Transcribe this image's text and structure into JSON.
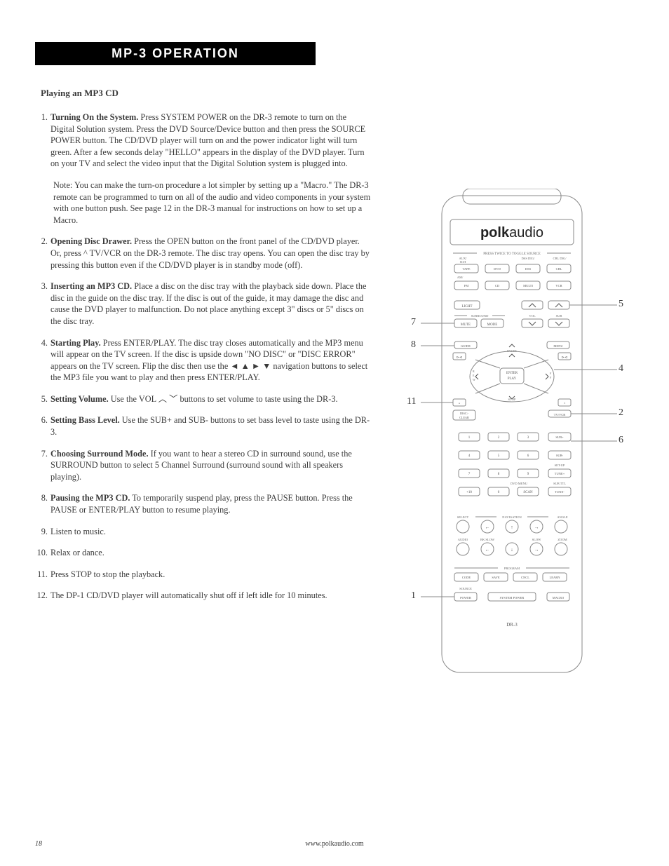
{
  "header": {
    "title": "MP-3 OPERATION"
  },
  "subheading": "Playing an MP3 CD",
  "steps": [
    {
      "n": "1.",
      "lead": "Turning On the System.",
      "text": " Press SYSTEM POWER on the DR-3 remote to turn on the Digital Solution system. Press the DVD Source/Device button and then press the SOURCE POWER button. The CD/DVD player will turn on and the power indicator light will turn green. After a few seconds delay \"HELLO\" appears in the display of the DVD player. Turn on your TV and select the video input that the Digital Solution system is plugged into."
    },
    {
      "n": "",
      "lead": "",
      "text": "Note: You can make the turn-on procedure a lot simpler by setting up a \"Macro.\" The DR-3 remote can be programmed to turn on all of the audio and video components in your system with one button push. See page 12 in the DR-3 manual for instructions on how to set up a Macro.",
      "isNote": true
    },
    {
      "n": "2.",
      "lead": "Opening Disc Drawer.",
      "text": " Press the OPEN button on the front panel of the CD/DVD player. Or, press ^ TV/VCR on the DR-3 remote. The disc tray opens. You can open the disc tray by pressing this button even if the CD/DVD player is in standby mode (off)."
    },
    {
      "n": "3.",
      "lead": "Inserting an MP3 CD.",
      "text": " Place a disc on the disc tray with the playback side down. Place the disc in the guide on the disc tray. If the disc is out of the guide, it may damage the disc and cause the DVD player to malfunction. Do not place anything except 3\" discs or 5\" discs on the disc tray."
    },
    {
      "n": "4.",
      "lead": "Starting Play.",
      "text": " Press ENTER/PLAY. The disc tray closes automatically and the MP3 menu will appear on the TV screen. If the disc is upside down \"NO DISC\" or \"DISC ERROR\" appears on the TV screen. Flip the disc then use the  ◄ ▲ ► ▼  navigation buttons to select the MP3 file you want to play and then press ENTER/PLAY."
    },
    {
      "n": "5.",
      "lead": "Setting Volume.",
      "text": " Use the VOL ︿ ﹀ buttons to set volume to taste using the DR-3."
    },
    {
      "n": "6.",
      "lead": "Setting Bass Level.",
      "text": " Use the SUB+ and SUB- buttons to set bass level to taste using the DR-3."
    },
    {
      "n": "7.",
      "lead": "Choosing Surround Mode.",
      "text": " If you want to hear a stereo CD in surround sound, use the SURROUND button to select 5 Channel Surround (surround sound with all speakers playing)."
    },
    {
      "n": "8.",
      "lead": "Pausing the MP3 CD.",
      "text": " To temporarily suspend play, press the PAUSE button. Press the PAUSE or ENTER/PLAY button to resume playing."
    },
    {
      "n": "9.",
      "lead": "",
      "text": "Listen to music."
    },
    {
      "n": "10.",
      "lead": "",
      "text": "Relax or dance."
    },
    {
      "n": "11.",
      "lead": "",
      "text": "Press STOP to stop the playback."
    },
    {
      "n": "12.",
      "lead": "",
      "text": "The DP-1 CD/DVD player will automatically shut off if left idle for 10 minutes."
    }
  ],
  "remote": {
    "brand_bold": "polk",
    "brand_light": "audio",
    "top_label": "PRESS TWICE TO TOGGLE SOURCE",
    "row1_labels": [
      "AUX/\n6CH",
      "",
      "DSS DIG/",
      "CBL DIG/"
    ],
    "src_rows": [
      [
        "TAPE",
        "DVD",
        "DSS",
        "CBL"
      ],
      [
        "FM",
        "CD",
        "MULTI",
        "VCR"
      ]
    ],
    "row2_label_left": "AM/",
    "light": "LIGHT",
    "surround_label": "SURROUND",
    "mute": "MUTE",
    "mode": "MODE",
    "vol": "VOL",
    "sub": "SUB",
    "guide": "GUIDE",
    "menu": "MENU",
    "pause": "PAUSE",
    "enter_top": "ENTER",
    "enter_bot": "PLAY",
    "rew": "R\nE\nW",
    "ff": "F\nF",
    "stop": "STOP",
    "disc": "DISC>",
    "clear": "CLEAR",
    "tvvcr": "TV/VCR",
    "keypad": [
      [
        "1",
        "2",
        "3"
      ],
      [
        "4",
        "5",
        "6"
      ],
      [
        "7",
        "8",
        "9"
      ],
      [
        "+10",
        "0",
        "SCAN"
      ]
    ],
    "right_col": [
      "SUB+",
      "SUB-",
      "TUNE+",
      "TUNE-"
    ],
    "right_col_labels": [
      "",
      "",
      "SET-UP",
      "DVD MENU",
      "SUB TTL"
    ],
    "nav_label": "NAVIGATION",
    "select": "SELECT",
    "angle": "ANGLE",
    "audio": "AUDIO",
    "bkslow": "BK SLOW",
    "slow": "SLOW",
    "zoom": "ZOOM",
    "program": "PROGRAM",
    "prog_row": [
      "CODE",
      "SAVE",
      "CNCL",
      "LEARN"
    ],
    "source": "SOURCE",
    "power": "POWER",
    "system_power": "SYSTEM POWER",
    "macro": "MACRO",
    "model": "DR-3"
  },
  "callouts": {
    "c1": "1",
    "c2": "2",
    "c4": "4",
    "c5": "5",
    "c6": "6",
    "c7": "7",
    "c8": "8",
    "c11": "11"
  },
  "footer": {
    "page": "18",
    "url": "www.polkaudio.com"
  },
  "colors": {
    "text": "#3a3a3a",
    "header_bg": "#000000",
    "header_fg": "#ffffff",
    "stroke": "#888888"
  }
}
